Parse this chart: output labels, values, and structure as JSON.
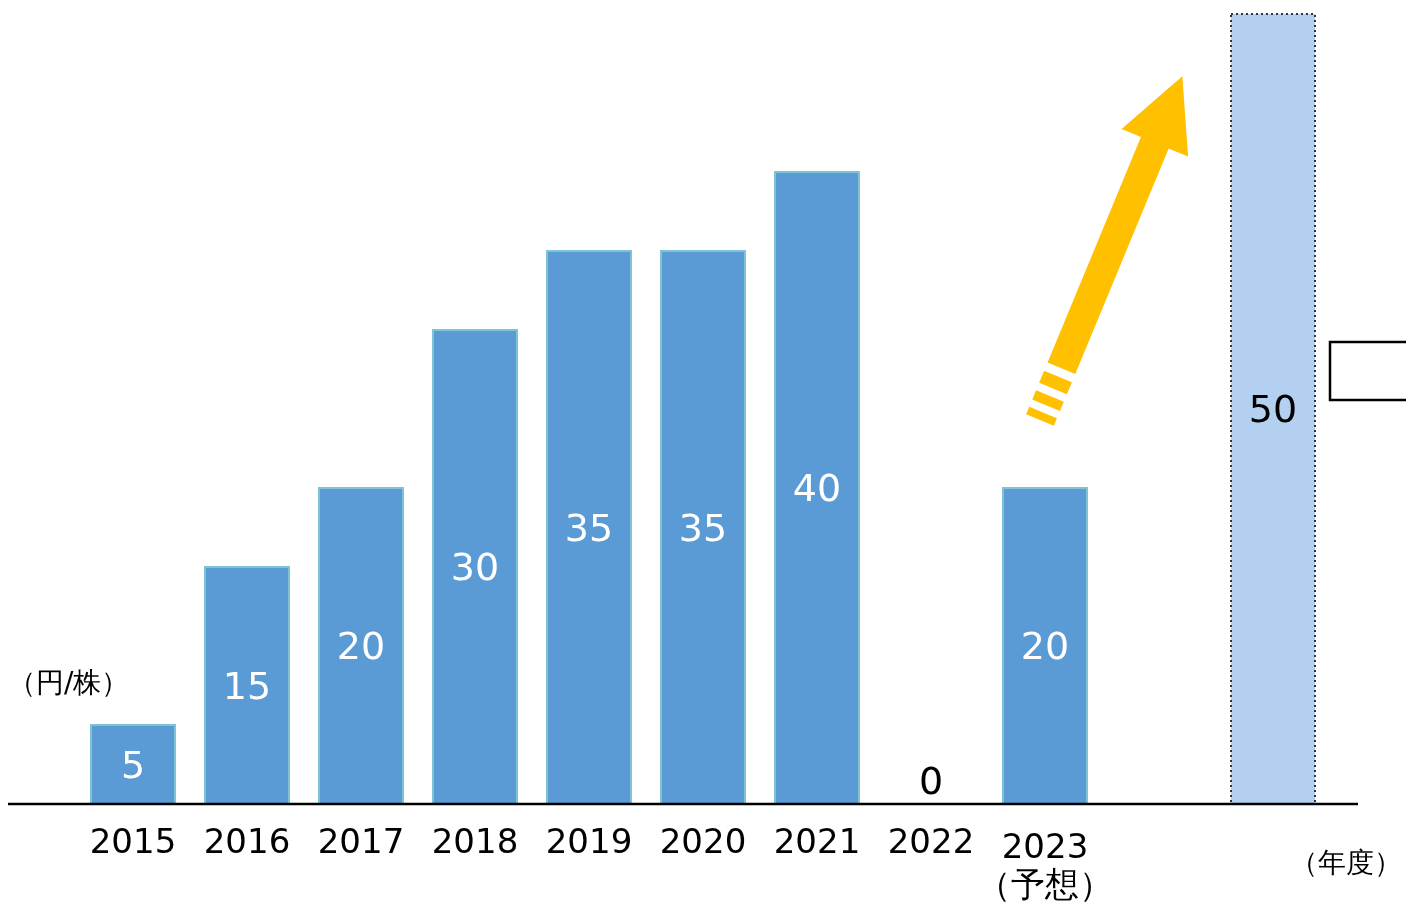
{
  "chart_data": {
    "type": "bar",
    "xlabel": "（年度）",
    "ylabel": "（円/株）",
    "categories": [
      "2015",
      "2016",
      "2017",
      "2018",
      "2019",
      "2020",
      "2021",
      "2022",
      "2023\n（予想）",
      null,
      null
    ],
    "values": [
      5,
      15,
      20,
      30,
      35,
      35,
      40,
      0,
      20,
      null,
      50
    ],
    "colors": [
      "#5b9bd5",
      "#5b9bd5",
      "#5b9bd5",
      "#5b9bd5",
      "#5b9bd5",
      "#5b9bd5",
      "#5b9bd5",
      "#5b9bd5",
      "#5b9bd5",
      null,
      "#b4d0f0"
    ],
    "data_labels": true
  }
}
